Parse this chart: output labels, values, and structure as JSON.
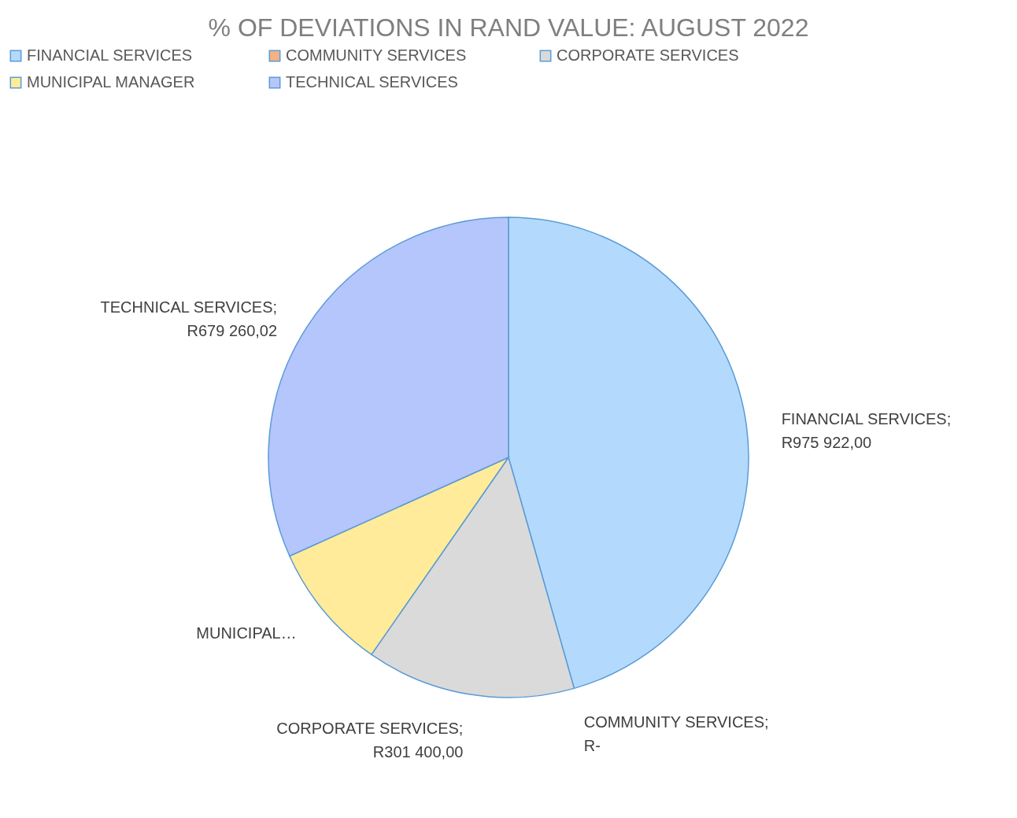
{
  "chart_data": {
    "type": "pie",
    "title": "% OF DEVIATIONS IN RAND VALUE: AUGUST 2022",
    "categories": [
      "FINANCIAL SERVICES",
      "COMMUNITY SERVICES",
      "CORPORATE SERVICES",
      "MUNICIPAL MANAGER",
      "TECHNICAL SERVICES"
    ],
    "values": [
      975922.0,
      0,
      301400.0,
      184000,
      679260.02
    ],
    "colors": [
      "#b3dafc",
      "#f4b183",
      "#dadada",
      "#ffeb99",
      "#b5c6fc"
    ],
    "value_labels": [
      "FINANCIAL SERVICES;\nR975 922,00",
      "COMMUNITY SERVICES;\nR-",
      "CORPORATE SERVICES;\nR301 400,00",
      "MUNICIPAL…",
      "TECHNICAL SERVICES;\nR679 260,02"
    ],
    "legend": "top"
  }
}
